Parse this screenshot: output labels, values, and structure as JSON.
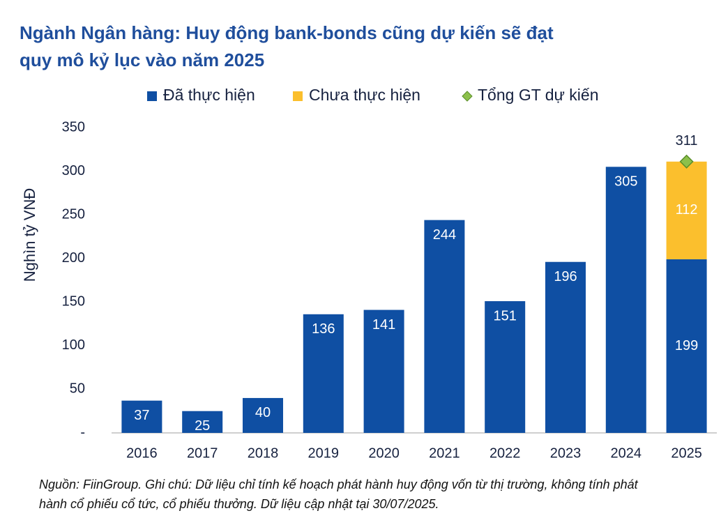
{
  "chart_data": {
    "type": "bar",
    "stacked": true,
    "title": "Ngành Ngân hàng: Huy động bank-bonds cũng dự kiến sẽ đạt quy mô kỷ lục vào năm 2025",
    "y_label": "Nghìn tỷ VNĐ",
    "note": "Nguồn: FiinGroup. Ghi chú: Dữ liệu chỉ tính kế hoạch phát hành huy động vốn từ thị trường, không tính phát hành cổ phiếu cổ tức, cổ phiếu thưởng. Dữ liệu cập nhật tại 30/07/2025.",
    "categories": [
      "2016",
      "2017",
      "2018",
      "2019",
      "2020",
      "2021",
      "2022",
      "2023",
      "2024",
      "2025"
    ],
    "series": [
      {
        "name": "Đã thực hiện",
        "type": "bar",
        "color": "#0f4fa3",
        "values": [
          37,
          25,
          40,
          136,
          141,
          244,
          151,
          196,
          305,
          199
        ]
      },
      {
        "name": "Chưa thực hiện",
        "type": "bar",
        "color": "#fbbf2d",
        "values": [
          null,
          null,
          null,
          null,
          null,
          null,
          null,
          null,
          null,
          112
        ]
      },
      {
        "name": "Tổng GT dự kiến",
        "type": "scatter",
        "color": "#8cc04b",
        "values": [
          null,
          null,
          null,
          null,
          null,
          null,
          null,
          null,
          null,
          311
        ]
      }
    ],
    "ylim": [
      0,
      350
    ],
    "yticks": [
      {
        "value": 0,
        "label": "-"
      },
      50,
      100,
      150,
      200,
      250,
      300,
      350
    ],
    "legend": "top"
  }
}
